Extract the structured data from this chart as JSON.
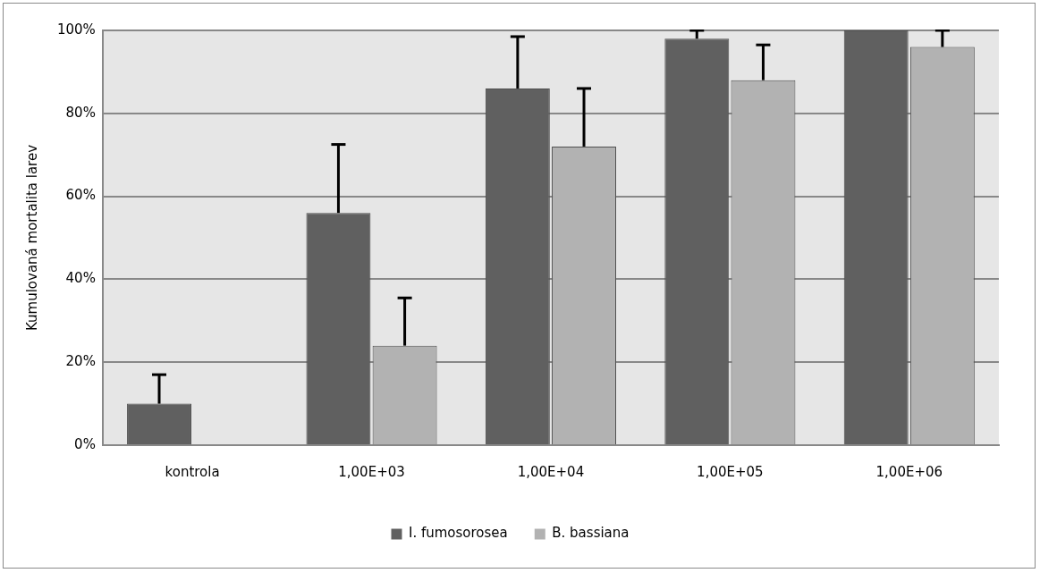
{
  "chart_data": {
    "type": "bar",
    "ylabel": "Kumulovaná mortalita larev",
    "categories": [
      "kontrola",
      "1,00E+03",
      "1,00E+04",
      "1,00E+05",
      "1,00E+06"
    ],
    "series": [
      {
        "name": "I. fumosorosea",
        "color": "#606060",
        "values": [
          10,
          56,
          86,
          98,
          100
        ],
        "errors": [
          [
            10,
            17
          ],
          [
            56,
            72.5
          ],
          [
            86,
            98.5
          ],
          [
            98,
            100
          ],
          null
        ]
      },
      {
        "name": "B. bassiana",
        "color": "#b2b2b2",
        "values": [
          0,
          24,
          72,
          88,
          96
        ],
        "errors": [
          null,
          [
            24,
            35.5
          ],
          [
            72,
            86
          ],
          [
            88,
            96.5
          ],
          [
            96,
            100
          ]
        ]
      }
    ],
    "ylim": [
      0,
      100
    ],
    "yticks": [
      {
        "value": 0,
        "label": "0%"
      },
      {
        "value": 20,
        "label": "20%"
      },
      {
        "value": 40,
        "label": "40%"
      },
      {
        "value": 60,
        "label": "60%"
      },
      {
        "value": 80,
        "label": "80%"
      },
      {
        "value": 100,
        "label": "100%"
      }
    ],
    "grid": "y",
    "legend": "bottom"
  }
}
